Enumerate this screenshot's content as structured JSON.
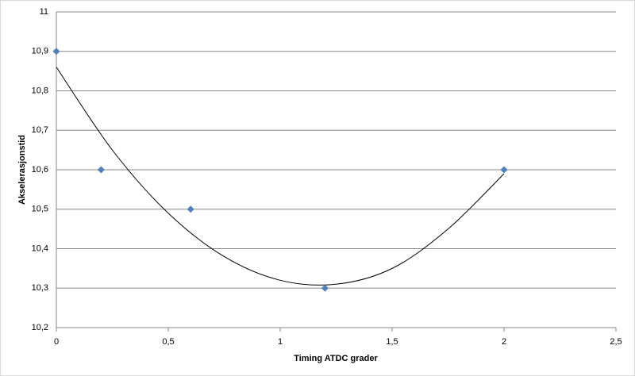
{
  "chart_data": {
    "type": "scatter",
    "x_label": "Timing ATDC grader",
    "y_label": "Akselerasjonstid",
    "series": [
      {
        "color": "#4f81bd",
        "x": [
          0,
          0.2,
          0.6,
          1.2,
          2
        ],
        "values": [
          10.9,
          10.6,
          10.5,
          10.3,
          10.6
        ]
      }
    ],
    "trendline": {
      "color": "#000000",
      "x": [
        0,
        0.25,
        0.5,
        0.75,
        1,
        1.25,
        1.5,
        1.75,
        2
      ],
      "values": [
        10.86,
        10.65,
        10.49,
        10.38,
        10.32,
        10.31,
        10.35,
        10.45,
        10.59
      ]
    },
    "xlim": [
      0,
      2.5
    ],
    "xticks": [
      0,
      {
        "value": 0.5,
        "label": "0,5"
      },
      1,
      {
        "value": 1.5,
        "label": "1,5"
      },
      2,
      {
        "value": 2.5,
        "label": "2,5"
      }
    ],
    "ylim": [
      10.2,
      11
    ],
    "yticks": [
      {
        "value": 10.2,
        "label": "10,2"
      },
      {
        "value": 10.3,
        "label": "10,3"
      },
      {
        "value": 10.4,
        "label": "10,4"
      },
      {
        "value": 10.5,
        "label": "10,5"
      },
      {
        "value": 10.6,
        "label": "10,6"
      },
      {
        "value": 10.7,
        "label": "10,7"
      },
      {
        "value": 10.8,
        "label": "10,8"
      },
      {
        "value": 10.9,
        "label": "10,9"
      },
      11
    ],
    "grid": true
  }
}
